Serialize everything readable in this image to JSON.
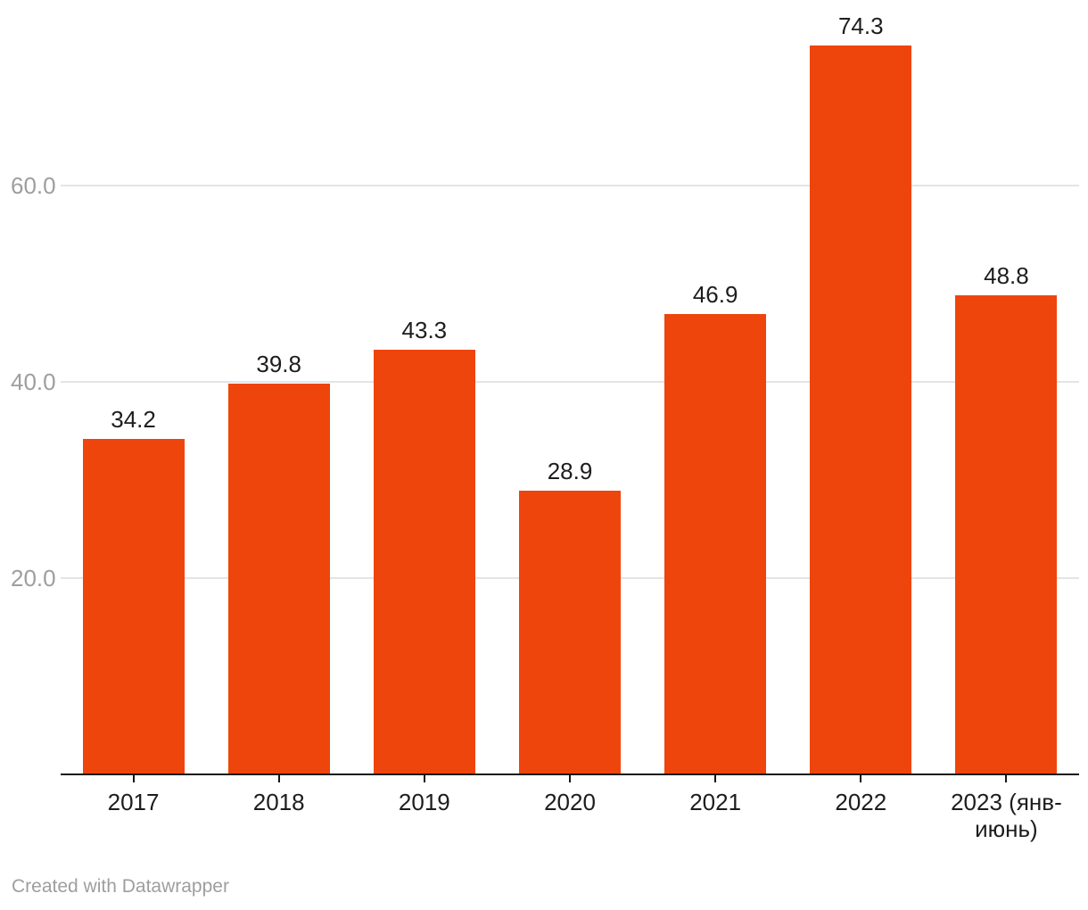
{
  "footer": {
    "credit": "Created with Datawrapper"
  },
  "chart_data": {
    "type": "bar",
    "title": "",
    "xlabel": "",
    "ylabel": "",
    "categories": [
      "2017",
      "2018",
      "2019",
      "2020",
      "2021",
      "2022",
      "2023 (янв-июнь)"
    ],
    "values": [
      34.2,
      39.8,
      43.3,
      28.9,
      46.9,
      74.3,
      48.8
    ],
    "value_labels": [
      "34.2",
      "39.8",
      "43.3",
      "28.9",
      "46.9",
      "74.3",
      "48.8"
    ],
    "yticks": [
      20,
      40,
      60
    ],
    "ytick_labels": [
      "20.0",
      "40.0",
      "60.0"
    ],
    "ylim": [
      0,
      77
    ],
    "grid": "horizontal-behind-bars",
    "legend": "none",
    "colors": {
      "bar": "#ee450c",
      "gridline": "#e4e4e4",
      "axis_line": "#161616",
      "tick_label": "#1d1d1d",
      "value_label": "#1d1d1d",
      "y_label": "#9e9e9e",
      "credit": "#9e9e9e",
      "background": "#ffffff"
    }
  }
}
